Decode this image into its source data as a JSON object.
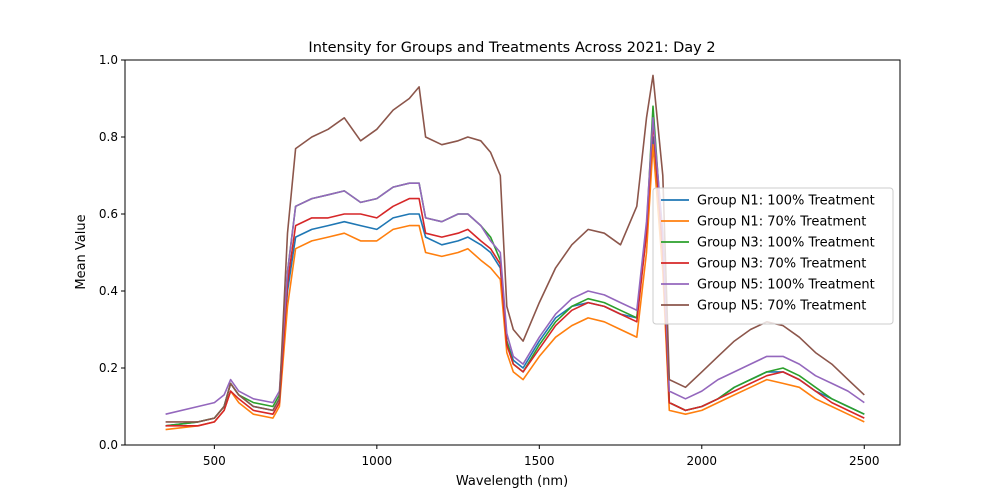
{
  "chart_data": {
    "type": "line",
    "title": "Intensity for Groups and Treatments Across 2021: Day 2",
    "xlabel": "Wavelength (nm)",
    "ylabel": "Mean Value",
    "xlim": [
      225,
      2610
    ],
    "ylim": [
      0.0,
      1.0
    ],
    "xticks": [
      500,
      1000,
      1500,
      2000,
      2500
    ],
    "xtick_labels": [
      "500",
      "1000",
      "1500",
      "2000",
      "2500"
    ],
    "yticks": [
      0.0,
      0.2,
      0.4,
      0.6,
      0.8,
      1.0
    ],
    "ytick_labels": [
      "0.0",
      "0.2",
      "0.4",
      "0.6",
      "0.8",
      "1.0"
    ],
    "grid": false,
    "legend_position": "center-right",
    "series": [
      {
        "name": "Group N1: 100% Treatment",
        "color": "#1f77b4",
        "x": [
          350,
          450,
          500,
          530,
          550,
          575,
          620,
          680,
          700,
          725,
          750,
          800,
          850,
          900,
          950,
          1000,
          1050,
          1100,
          1130,
          1150,
          1200,
          1250,
          1280,
          1320,
          1350,
          1380,
          1400,
          1420,
          1450,
          1500,
          1550,
          1600,
          1650,
          1700,
          1750,
          1800,
          1830,
          1850,
          1880,
          1900,
          1950,
          2000,
          2050,
          2100,
          2150,
          2200,
          2250,
          2300,
          2350,
          2400,
          2450,
          2500
        ],
        "y": [
          0.05,
          0.06,
          0.07,
          0.1,
          0.16,
          0.13,
          0.1,
          0.09,
          0.12,
          0.4,
          0.54,
          0.56,
          0.57,
          0.58,
          0.57,
          0.56,
          0.59,
          0.6,
          0.6,
          0.54,
          0.52,
          0.53,
          0.54,
          0.52,
          0.5,
          0.46,
          0.27,
          0.22,
          0.2,
          0.27,
          0.33,
          0.36,
          0.37,
          0.36,
          0.34,
          0.33,
          0.55,
          0.8,
          0.5,
          0.11,
          0.09,
          0.1,
          0.12,
          0.15,
          0.17,
          0.19,
          0.19,
          0.17,
          0.14,
          0.12,
          0.1,
          0.08
        ]
      },
      {
        "name": "Group N1: 70% Treatment",
        "color": "#ff7f0e",
        "x": [
          350,
          450,
          500,
          530,
          550,
          575,
          620,
          680,
          700,
          725,
          750,
          800,
          850,
          900,
          950,
          1000,
          1050,
          1100,
          1130,
          1150,
          1200,
          1250,
          1280,
          1320,
          1350,
          1380,
          1400,
          1420,
          1450,
          1500,
          1550,
          1600,
          1650,
          1700,
          1750,
          1800,
          1830,
          1850,
          1880,
          1900,
          1950,
          2000,
          2050,
          2100,
          2150,
          2200,
          2250,
          2300,
          2350,
          2400,
          2450,
          2500
        ],
        "y": [
          0.04,
          0.05,
          0.06,
          0.09,
          0.14,
          0.11,
          0.08,
          0.07,
          0.1,
          0.36,
          0.51,
          0.53,
          0.54,
          0.55,
          0.53,
          0.53,
          0.56,
          0.57,
          0.57,
          0.5,
          0.49,
          0.5,
          0.51,
          0.48,
          0.46,
          0.43,
          0.24,
          0.19,
          0.17,
          0.23,
          0.28,
          0.31,
          0.33,
          0.32,
          0.3,
          0.28,
          0.5,
          0.78,
          0.45,
          0.09,
          0.08,
          0.09,
          0.11,
          0.13,
          0.15,
          0.17,
          0.16,
          0.15,
          0.12,
          0.1,
          0.08,
          0.06
        ]
      },
      {
        "name": "Group N3: 100% Treatment",
        "color": "#2ca02c",
        "x": [
          350,
          450,
          500,
          530,
          550,
          575,
          620,
          680,
          700,
          725,
          750,
          800,
          850,
          900,
          950,
          1000,
          1050,
          1100,
          1130,
          1150,
          1200,
          1250,
          1280,
          1320,
          1350,
          1380,
          1400,
          1420,
          1450,
          1500,
          1550,
          1600,
          1650,
          1700,
          1750,
          1800,
          1830,
          1850,
          1880,
          1900,
          1950,
          2000,
          2050,
          2100,
          2150,
          2200,
          2250,
          2300,
          2350,
          2400,
          2450,
          2500
        ],
        "y": [
          0.05,
          0.06,
          0.07,
          0.1,
          0.16,
          0.13,
          0.11,
          0.1,
          0.13,
          0.45,
          0.62,
          0.64,
          0.65,
          0.66,
          0.63,
          0.64,
          0.67,
          0.68,
          0.68,
          0.59,
          0.58,
          0.6,
          0.6,
          0.57,
          0.54,
          0.48,
          0.27,
          0.21,
          0.19,
          0.26,
          0.32,
          0.36,
          0.38,
          0.37,
          0.35,
          0.33,
          0.56,
          0.88,
          0.52,
          0.11,
          0.09,
          0.1,
          0.12,
          0.15,
          0.17,
          0.19,
          0.2,
          0.18,
          0.15,
          0.12,
          0.1,
          0.08
        ]
      },
      {
        "name": "Group N3: 70% Treatment",
        "color": "#d62728",
        "x": [
          350,
          450,
          500,
          530,
          550,
          575,
          620,
          680,
          700,
          725,
          750,
          800,
          850,
          900,
          950,
          1000,
          1050,
          1100,
          1130,
          1150,
          1200,
          1250,
          1280,
          1320,
          1350,
          1380,
          1400,
          1420,
          1450,
          1500,
          1550,
          1600,
          1650,
          1700,
          1750,
          1800,
          1830,
          1850,
          1880,
          1900,
          1950,
          2000,
          2050,
          2100,
          2150,
          2200,
          2250,
          2300,
          2350,
          2400,
          2450,
          2500
        ],
        "y": [
          0.05,
          0.05,
          0.06,
          0.09,
          0.14,
          0.12,
          0.09,
          0.08,
          0.11,
          0.42,
          0.57,
          0.59,
          0.59,
          0.6,
          0.6,
          0.59,
          0.62,
          0.64,
          0.64,
          0.55,
          0.54,
          0.55,
          0.56,
          0.53,
          0.51,
          0.47,
          0.26,
          0.21,
          0.19,
          0.25,
          0.31,
          0.35,
          0.37,
          0.36,
          0.34,
          0.32,
          0.55,
          0.84,
          0.5,
          0.11,
          0.09,
          0.1,
          0.12,
          0.14,
          0.16,
          0.18,
          0.19,
          0.17,
          0.14,
          0.11,
          0.09,
          0.07
        ]
      },
      {
        "name": "Group N5: 100% Treatment",
        "color": "#9467bd",
        "x": [
          350,
          450,
          500,
          530,
          550,
          575,
          620,
          680,
          700,
          725,
          750,
          800,
          850,
          900,
          950,
          1000,
          1050,
          1100,
          1130,
          1150,
          1200,
          1250,
          1280,
          1320,
          1350,
          1380,
          1400,
          1420,
          1450,
          1500,
          1550,
          1600,
          1650,
          1700,
          1750,
          1800,
          1830,
          1850,
          1880,
          1900,
          1950,
          2000,
          2050,
          2100,
          2150,
          2200,
          2250,
          2300,
          2350,
          2400,
          2450,
          2500
        ],
        "y": [
          0.08,
          0.1,
          0.11,
          0.13,
          0.17,
          0.14,
          0.12,
          0.11,
          0.14,
          0.45,
          0.62,
          0.64,
          0.65,
          0.66,
          0.63,
          0.64,
          0.67,
          0.68,
          0.68,
          0.59,
          0.58,
          0.6,
          0.6,
          0.57,
          0.53,
          0.5,
          0.29,
          0.23,
          0.21,
          0.28,
          0.34,
          0.38,
          0.4,
          0.39,
          0.37,
          0.35,
          0.58,
          0.85,
          0.55,
          0.14,
          0.12,
          0.14,
          0.17,
          0.19,
          0.21,
          0.23,
          0.23,
          0.21,
          0.18,
          0.16,
          0.14,
          0.11
        ]
      },
      {
        "name": "Group N5: 70% Treatment",
        "color": "#8c564b",
        "x": [
          350,
          450,
          500,
          530,
          550,
          575,
          620,
          680,
          700,
          725,
          750,
          800,
          850,
          900,
          950,
          1000,
          1050,
          1100,
          1130,
          1150,
          1200,
          1250,
          1280,
          1320,
          1350,
          1380,
          1400,
          1420,
          1450,
          1500,
          1550,
          1600,
          1650,
          1700,
          1750,
          1800,
          1830,
          1850,
          1880,
          1900,
          1950,
          2000,
          2050,
          2100,
          2150,
          2200,
          2250,
          2300,
          2350,
          2400,
          2450,
          2500
        ],
        "y": [
          0.06,
          0.06,
          0.07,
          0.1,
          0.16,
          0.13,
          0.1,
          0.09,
          0.12,
          0.55,
          0.77,
          0.8,
          0.82,
          0.85,
          0.79,
          0.82,
          0.87,
          0.9,
          0.93,
          0.8,
          0.78,
          0.79,
          0.8,
          0.79,
          0.76,
          0.7,
          0.36,
          0.3,
          0.27,
          0.37,
          0.46,
          0.52,
          0.56,
          0.55,
          0.52,
          0.62,
          0.85,
          0.96,
          0.7,
          0.17,
          0.15,
          0.19,
          0.23,
          0.27,
          0.3,
          0.32,
          0.31,
          0.28,
          0.24,
          0.21,
          0.17,
          0.13
        ]
      }
    ]
  }
}
